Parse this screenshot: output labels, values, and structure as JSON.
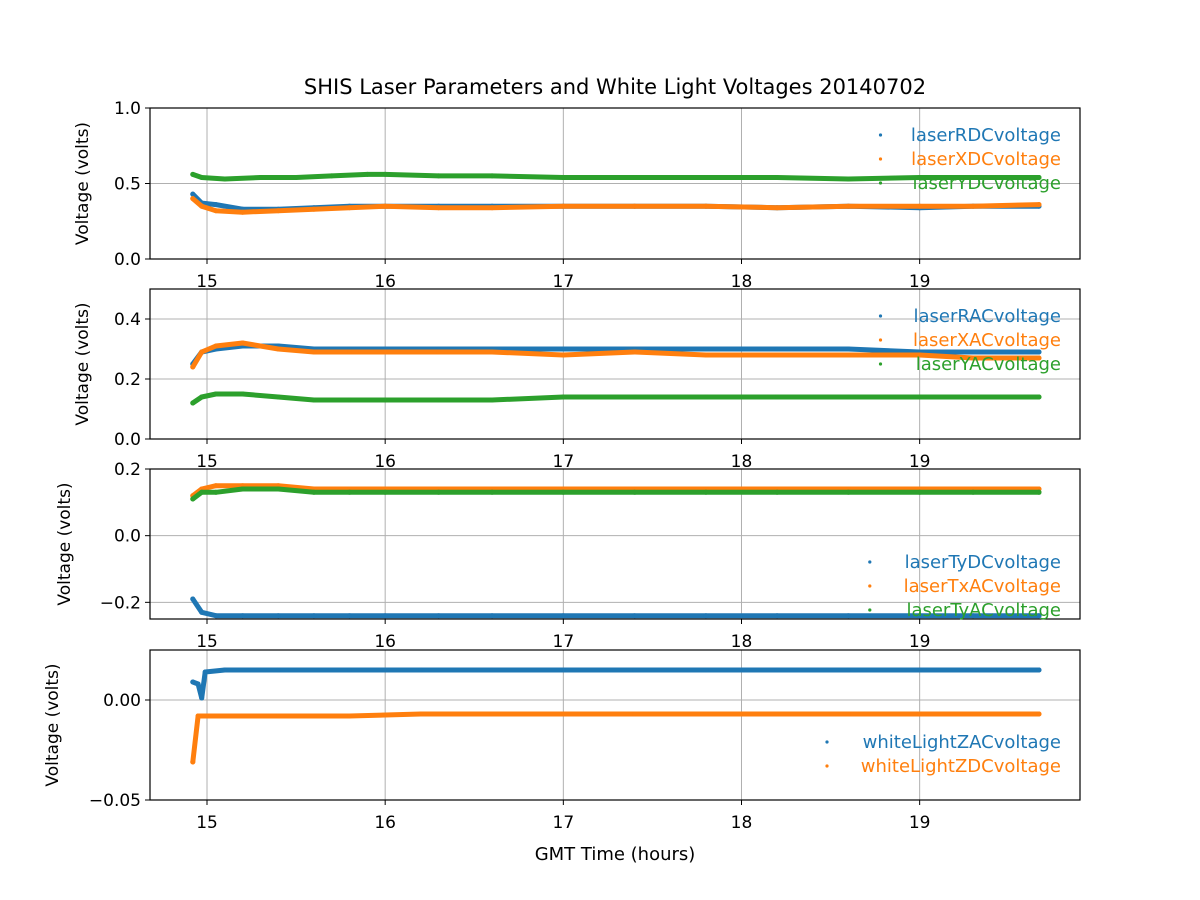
{
  "figure": {
    "title": "SHIS Laser Parameters and White Light Voltages 20140702",
    "xlabel": "GMT Time (hours)",
    "xticks": [
      "15",
      "16",
      "17",
      "18",
      "19"
    ]
  },
  "colors": {
    "blue": "#1f77b4",
    "orange": "#ff7f0e",
    "green": "#2ca02c",
    "grid": "#b0b0b0"
  },
  "chart_data": [
    {
      "type": "scatter",
      "ylabel": "Voltage (volts)",
      "xlim": [
        14.68,
        19.9
      ],
      "ylim": [
        0.0,
        1.0
      ],
      "yticks": [
        0.0,
        0.5,
        1.0
      ],
      "ytick_labels": [
        "0.0",
        "0.5",
        "1.0"
      ],
      "grid": true,
      "legend_position": "right",
      "series": [
        {
          "name": "laserRDCvoltage",
          "color": "blue",
          "x": [
            14.92,
            14.97,
            15.05,
            15.2,
            15.4,
            15.6,
            15.8,
            16.0,
            16.3,
            16.6,
            17.0,
            17.4,
            17.8,
            18.2,
            18.6,
            19.0,
            19.3,
            19.67
          ],
          "y": [
            0.43,
            0.37,
            0.36,
            0.33,
            0.33,
            0.34,
            0.35,
            0.35,
            0.35,
            0.35,
            0.35,
            0.35,
            0.35,
            0.34,
            0.35,
            0.34,
            0.35,
            0.35
          ]
        },
        {
          "name": "laserXDCvoltage",
          "color": "orange",
          "x": [
            14.92,
            14.97,
            15.05,
            15.2,
            15.4,
            15.6,
            15.8,
            16.0,
            16.3,
            16.6,
            17.0,
            17.4,
            17.8,
            18.2,
            18.6,
            19.0,
            19.3,
            19.67
          ],
          "y": [
            0.4,
            0.35,
            0.32,
            0.31,
            0.32,
            0.33,
            0.34,
            0.35,
            0.34,
            0.34,
            0.35,
            0.35,
            0.35,
            0.34,
            0.35,
            0.35,
            0.35,
            0.36
          ]
        },
        {
          "name": "laserYDCvoltage",
          "color": "green",
          "x": [
            14.92,
            14.97,
            15.1,
            15.3,
            15.5,
            15.7,
            15.9,
            16.0,
            16.3,
            16.6,
            17.0,
            17.4,
            17.8,
            18.2,
            18.6,
            19.0,
            19.3,
            19.67
          ],
          "y": [
            0.56,
            0.54,
            0.53,
            0.54,
            0.54,
            0.55,
            0.56,
            0.56,
            0.55,
            0.55,
            0.54,
            0.54,
            0.54,
            0.54,
            0.53,
            0.54,
            0.54,
            0.54
          ]
        }
      ]
    },
    {
      "type": "scatter",
      "ylabel": "Voltage (volts)",
      "xlim": [
        14.68,
        19.9
      ],
      "ylim": [
        0.0,
        0.5
      ],
      "yticks": [
        0.0,
        0.2,
        0.4
      ],
      "ytick_labels": [
        "0.0",
        "0.2",
        "0.4"
      ],
      "grid": true,
      "legend_position": "right",
      "series": [
        {
          "name": "laserRACvoltage",
          "color": "blue",
          "x": [
            14.92,
            14.97,
            15.05,
            15.2,
            15.4,
            15.6,
            15.8,
            16.0,
            16.3,
            16.6,
            17.0,
            17.4,
            17.8,
            18.2,
            18.6,
            19.0,
            19.3,
            19.67
          ],
          "y": [
            0.25,
            0.29,
            0.3,
            0.31,
            0.31,
            0.3,
            0.3,
            0.3,
            0.3,
            0.3,
            0.3,
            0.3,
            0.3,
            0.3,
            0.3,
            0.29,
            0.29,
            0.29
          ]
        },
        {
          "name": "laserXACvoltage",
          "color": "orange",
          "x": [
            14.92,
            14.97,
            15.05,
            15.2,
            15.4,
            15.6,
            15.8,
            16.0,
            16.3,
            16.6,
            17.0,
            17.4,
            17.8,
            18.2,
            18.6,
            19.0,
            19.3,
            19.67
          ],
          "y": [
            0.24,
            0.29,
            0.31,
            0.32,
            0.3,
            0.29,
            0.29,
            0.29,
            0.29,
            0.29,
            0.28,
            0.29,
            0.28,
            0.28,
            0.28,
            0.28,
            0.27,
            0.27
          ]
        },
        {
          "name": "laserYACvoltage",
          "color": "green",
          "x": [
            14.92,
            14.97,
            15.05,
            15.2,
            15.4,
            15.6,
            15.8,
            16.0,
            16.3,
            16.6,
            17.0,
            17.4,
            17.8,
            18.2,
            18.6,
            19.0,
            19.3,
            19.67
          ],
          "y": [
            0.12,
            0.14,
            0.15,
            0.15,
            0.14,
            0.13,
            0.13,
            0.13,
            0.13,
            0.13,
            0.14,
            0.14,
            0.14,
            0.14,
            0.14,
            0.14,
            0.14,
            0.14
          ]
        }
      ]
    },
    {
      "type": "scatter",
      "ylabel": "Voltage (volts)",
      "xlim": [
        14.68,
        19.9
      ],
      "ylim": [
        -0.25,
        0.2
      ],
      "yticks": [
        -0.2,
        0.0,
        0.2
      ],
      "ytick_labels": [
        "−0.2",
        "0.0",
        "0.2"
      ],
      "grid": true,
      "legend_position": "right",
      "series": [
        {
          "name": "laserTyDCvoltage",
          "color": "blue",
          "x": [
            14.92,
            14.97,
            15.05,
            15.2,
            15.4,
            15.6,
            15.8,
            16.0,
            16.3,
            16.6,
            17.0,
            17.4,
            17.8,
            18.2,
            18.6,
            19.0,
            19.3,
            19.67
          ],
          "y": [
            -0.19,
            -0.23,
            -0.24,
            -0.24,
            -0.24,
            -0.24,
            -0.24,
            -0.24,
            -0.24,
            -0.24,
            -0.24,
            -0.24,
            -0.24,
            -0.24,
            -0.24,
            -0.24,
            -0.24,
            -0.24
          ]
        },
        {
          "name": "laserTxACvoltage",
          "color": "orange",
          "x": [
            14.92,
            14.97,
            15.05,
            15.2,
            15.4,
            15.6,
            15.8,
            16.0,
            16.3,
            16.6,
            17.0,
            17.4,
            17.8,
            18.2,
            18.6,
            19.0,
            19.3,
            19.67
          ],
          "y": [
            0.12,
            0.14,
            0.15,
            0.15,
            0.15,
            0.14,
            0.14,
            0.14,
            0.14,
            0.14,
            0.14,
            0.14,
            0.14,
            0.14,
            0.14,
            0.14,
            0.14,
            0.14
          ]
        },
        {
          "name": "laserTyACvoltage",
          "color": "green",
          "x": [
            14.92,
            14.97,
            15.05,
            15.2,
            15.4,
            15.6,
            15.8,
            16.0,
            16.3,
            16.6,
            17.0,
            17.4,
            17.8,
            18.2,
            18.6,
            19.0,
            19.3,
            19.67
          ],
          "y": [
            0.11,
            0.13,
            0.13,
            0.14,
            0.14,
            0.13,
            0.13,
            0.13,
            0.13,
            0.13,
            0.13,
            0.13,
            0.13,
            0.13,
            0.13,
            0.13,
            0.13,
            0.13
          ]
        }
      ]
    },
    {
      "type": "scatter",
      "ylabel": "Voltage (volts)",
      "xlim": [
        14.68,
        19.9
      ],
      "ylim": [
        -0.05,
        0.025
      ],
      "yticks": [
        -0.05,
        0.0
      ],
      "ytick_labels": [
        "−0.05",
        "0.00"
      ],
      "grid": true,
      "legend_position": "right",
      "series": [
        {
          "name": "whiteLightZACvoltage",
          "color": "blue",
          "x": [
            14.92,
            14.95,
            14.97,
            14.99,
            15.1,
            15.4,
            15.8,
            16.2,
            16.6,
            17.0,
            17.4,
            17.8,
            18.2,
            18.6,
            19.0,
            19.3,
            19.67
          ],
          "y": [
            0.009,
            0.008,
            0.001,
            0.014,
            0.015,
            0.015,
            0.015,
            0.015,
            0.015,
            0.015,
            0.015,
            0.015,
            0.015,
            0.015,
            0.015,
            0.015,
            0.015
          ]
        },
        {
          "name": "whiteLightZDCvoltage",
          "color": "orange",
          "x": [
            14.92,
            14.95,
            15.1,
            15.4,
            15.8,
            16.2,
            16.6,
            17.0,
            17.4,
            17.8,
            18.2,
            18.6,
            19.0,
            19.3,
            19.67
          ],
          "y": [
            -0.031,
            -0.008,
            -0.008,
            -0.008,
            -0.008,
            -0.007,
            -0.007,
            -0.007,
            -0.007,
            -0.007,
            -0.007,
            -0.007,
            -0.007,
            -0.007,
            -0.007
          ]
        }
      ]
    }
  ]
}
